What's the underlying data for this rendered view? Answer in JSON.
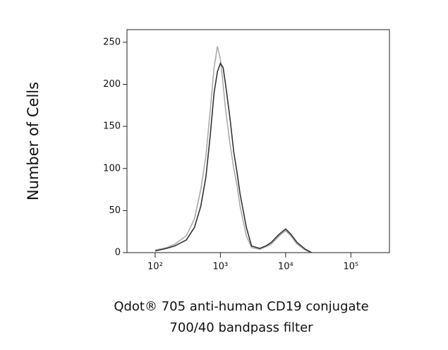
{
  "chart_data": {
    "type": "line",
    "ylabel": "Number of Cells",
    "xlabel": [
      "Qdot® 705 anti-human CD19 conjugate",
      "700/40 bandpass filter"
    ],
    "xscale": "log",
    "xlim": [
      37,
      390000
    ],
    "ylim": [
      0,
      265
    ],
    "xticks": [
      {
        "value": 100,
        "label": "10²"
      },
      {
        "value": 1000,
        "label": "10³"
      },
      {
        "value": 10000,
        "label": "10⁴"
      },
      {
        "value": 100000,
        "label": "10⁵"
      }
    ],
    "yticks": [
      0,
      50,
      100,
      150,
      200,
      250
    ],
    "x": [
      100,
      150,
      200,
      300,
      400,
      500,
      600,
      700,
      800,
      900,
      1000,
      1100,
      1200,
      1400,
      1600,
      1800,
      2000,
      2500,
      3000,
      4000,
      5000,
      6000,
      8000,
      10000,
      12000,
      15000,
      20000,
      25000
    ],
    "series": [
      {
        "color": "#aaaaaa",
        "values": [
          3,
          6,
          10,
          20,
          40,
          75,
          115,
          170,
          220,
          245,
          230,
          200,
          170,
          130,
          100,
          80,
          55,
          20,
          6,
          4,
          7,
          10,
          20,
          26,
          20,
          10,
          3,
          0
        ]
      },
      {
        "color": "#333333",
        "values": [
          2,
          5,
          8,
          15,
          30,
          55,
          90,
          140,
          190,
          215,
          225,
          220,
          200,
          160,
          120,
          95,
          70,
          30,
          8,
          5,
          8,
          12,
          22,
          28,
          22,
          12,
          4,
          0
        ]
      }
    ]
  }
}
